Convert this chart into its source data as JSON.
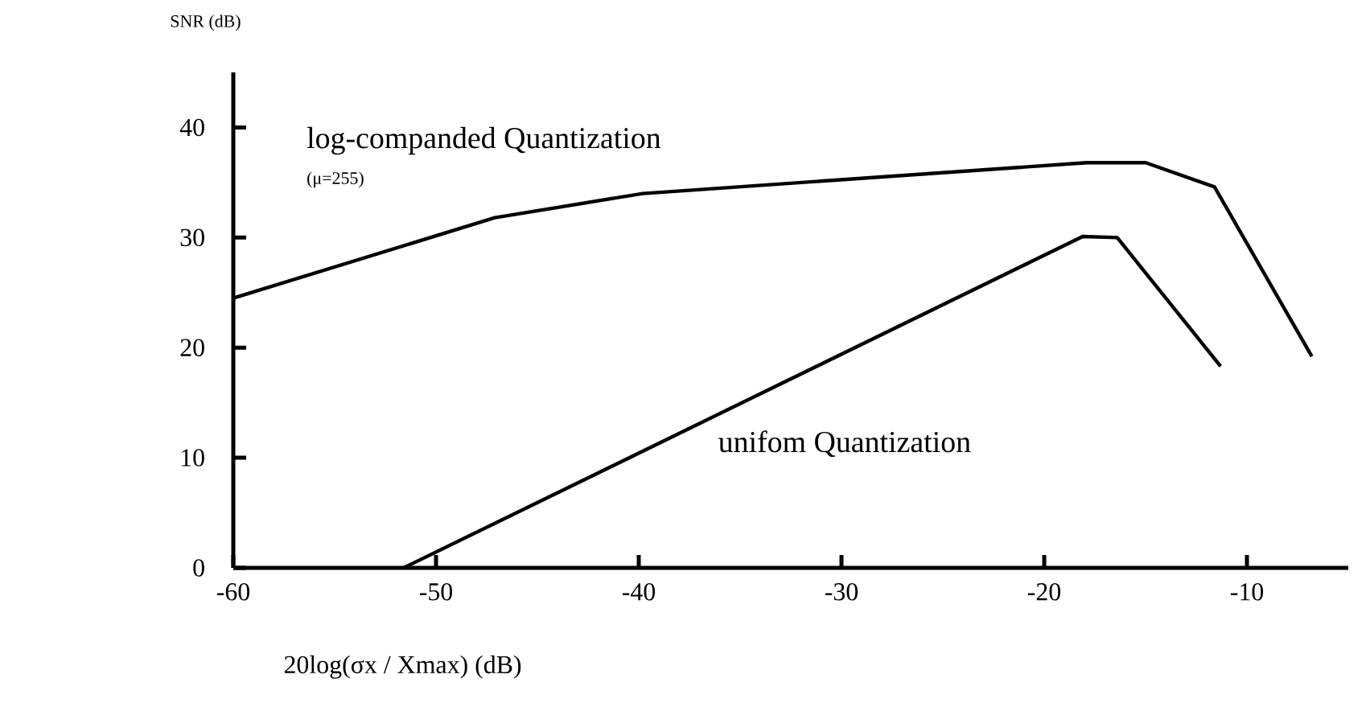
{
  "chart_data": {
    "type": "line",
    "ylabel": "SNR (dB)",
    "xlabel": "20log(σx / Xmax) (dB)",
    "xlim": [
      -60,
      -5
    ],
    "ylim": [
      0,
      45
    ],
    "xticks": [
      -60,
      -50,
      -40,
      -30,
      -20,
      -10
    ],
    "yticks": [
      0,
      10,
      20,
      30,
      40
    ],
    "grid": false,
    "legend": false,
    "marker": "none",
    "line_style": "solid",
    "annotations": [
      "(μ=255)"
    ],
    "series": [
      {
        "name": "log-companded Quantization",
        "color": "#000000",
        "x": [
          -60,
          -47.1,
          -39.8,
          -17.9,
          -15.0,
          -11.6,
          -6.8
        ],
        "values": [
          24.5,
          31.8,
          34.0,
          36.8,
          36.8,
          34.6,
          19.2
        ]
      },
      {
        "name": "unifom Quantization",
        "color": "#000000",
        "x": [
          -51.6,
          -18.1,
          -16.4,
          -11.3
        ],
        "values": [
          0,
          30.1,
          30.0,
          18.3
        ]
      }
    ]
  }
}
